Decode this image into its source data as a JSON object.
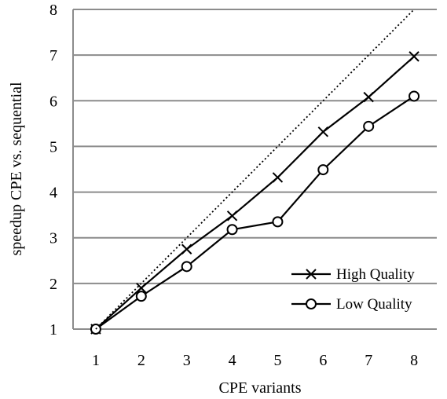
{
  "chart_data": {
    "type": "line",
    "xlabel": "CPE variants",
    "ylabel": "speedup CPE vs. sequential",
    "x": [
      1,
      2,
      3,
      4,
      5,
      6,
      7,
      8
    ],
    "xlim": [
      0.5,
      8.5
    ],
    "ylim": [
      1,
      8
    ],
    "xticks": [
      "1",
      "2",
      "3",
      "4",
      "5",
      "6",
      "7",
      "8"
    ],
    "yticks": [
      "1",
      "2",
      "3",
      "4",
      "5",
      "6",
      "7",
      "8"
    ],
    "grid": "horizontal",
    "legend": "bottom-right",
    "series": [
      {
        "name": "High Quality",
        "marker": "x",
        "color": "#000000",
        "values": [
          1.0,
          1.9,
          2.75,
          3.48,
          4.32,
          5.32,
          6.08,
          6.97
        ]
      },
      {
        "name": "Low Quality",
        "marker": "o",
        "color": "#000000",
        "values": [
          1.0,
          1.72,
          2.37,
          3.18,
          3.35,
          4.49,
          5.44,
          6.1
        ]
      },
      {
        "name": "",
        "style": "dotted",
        "color": "#000000",
        "values": [
          1,
          2,
          3,
          4,
          5,
          6,
          7,
          8
        ]
      }
    ]
  }
}
